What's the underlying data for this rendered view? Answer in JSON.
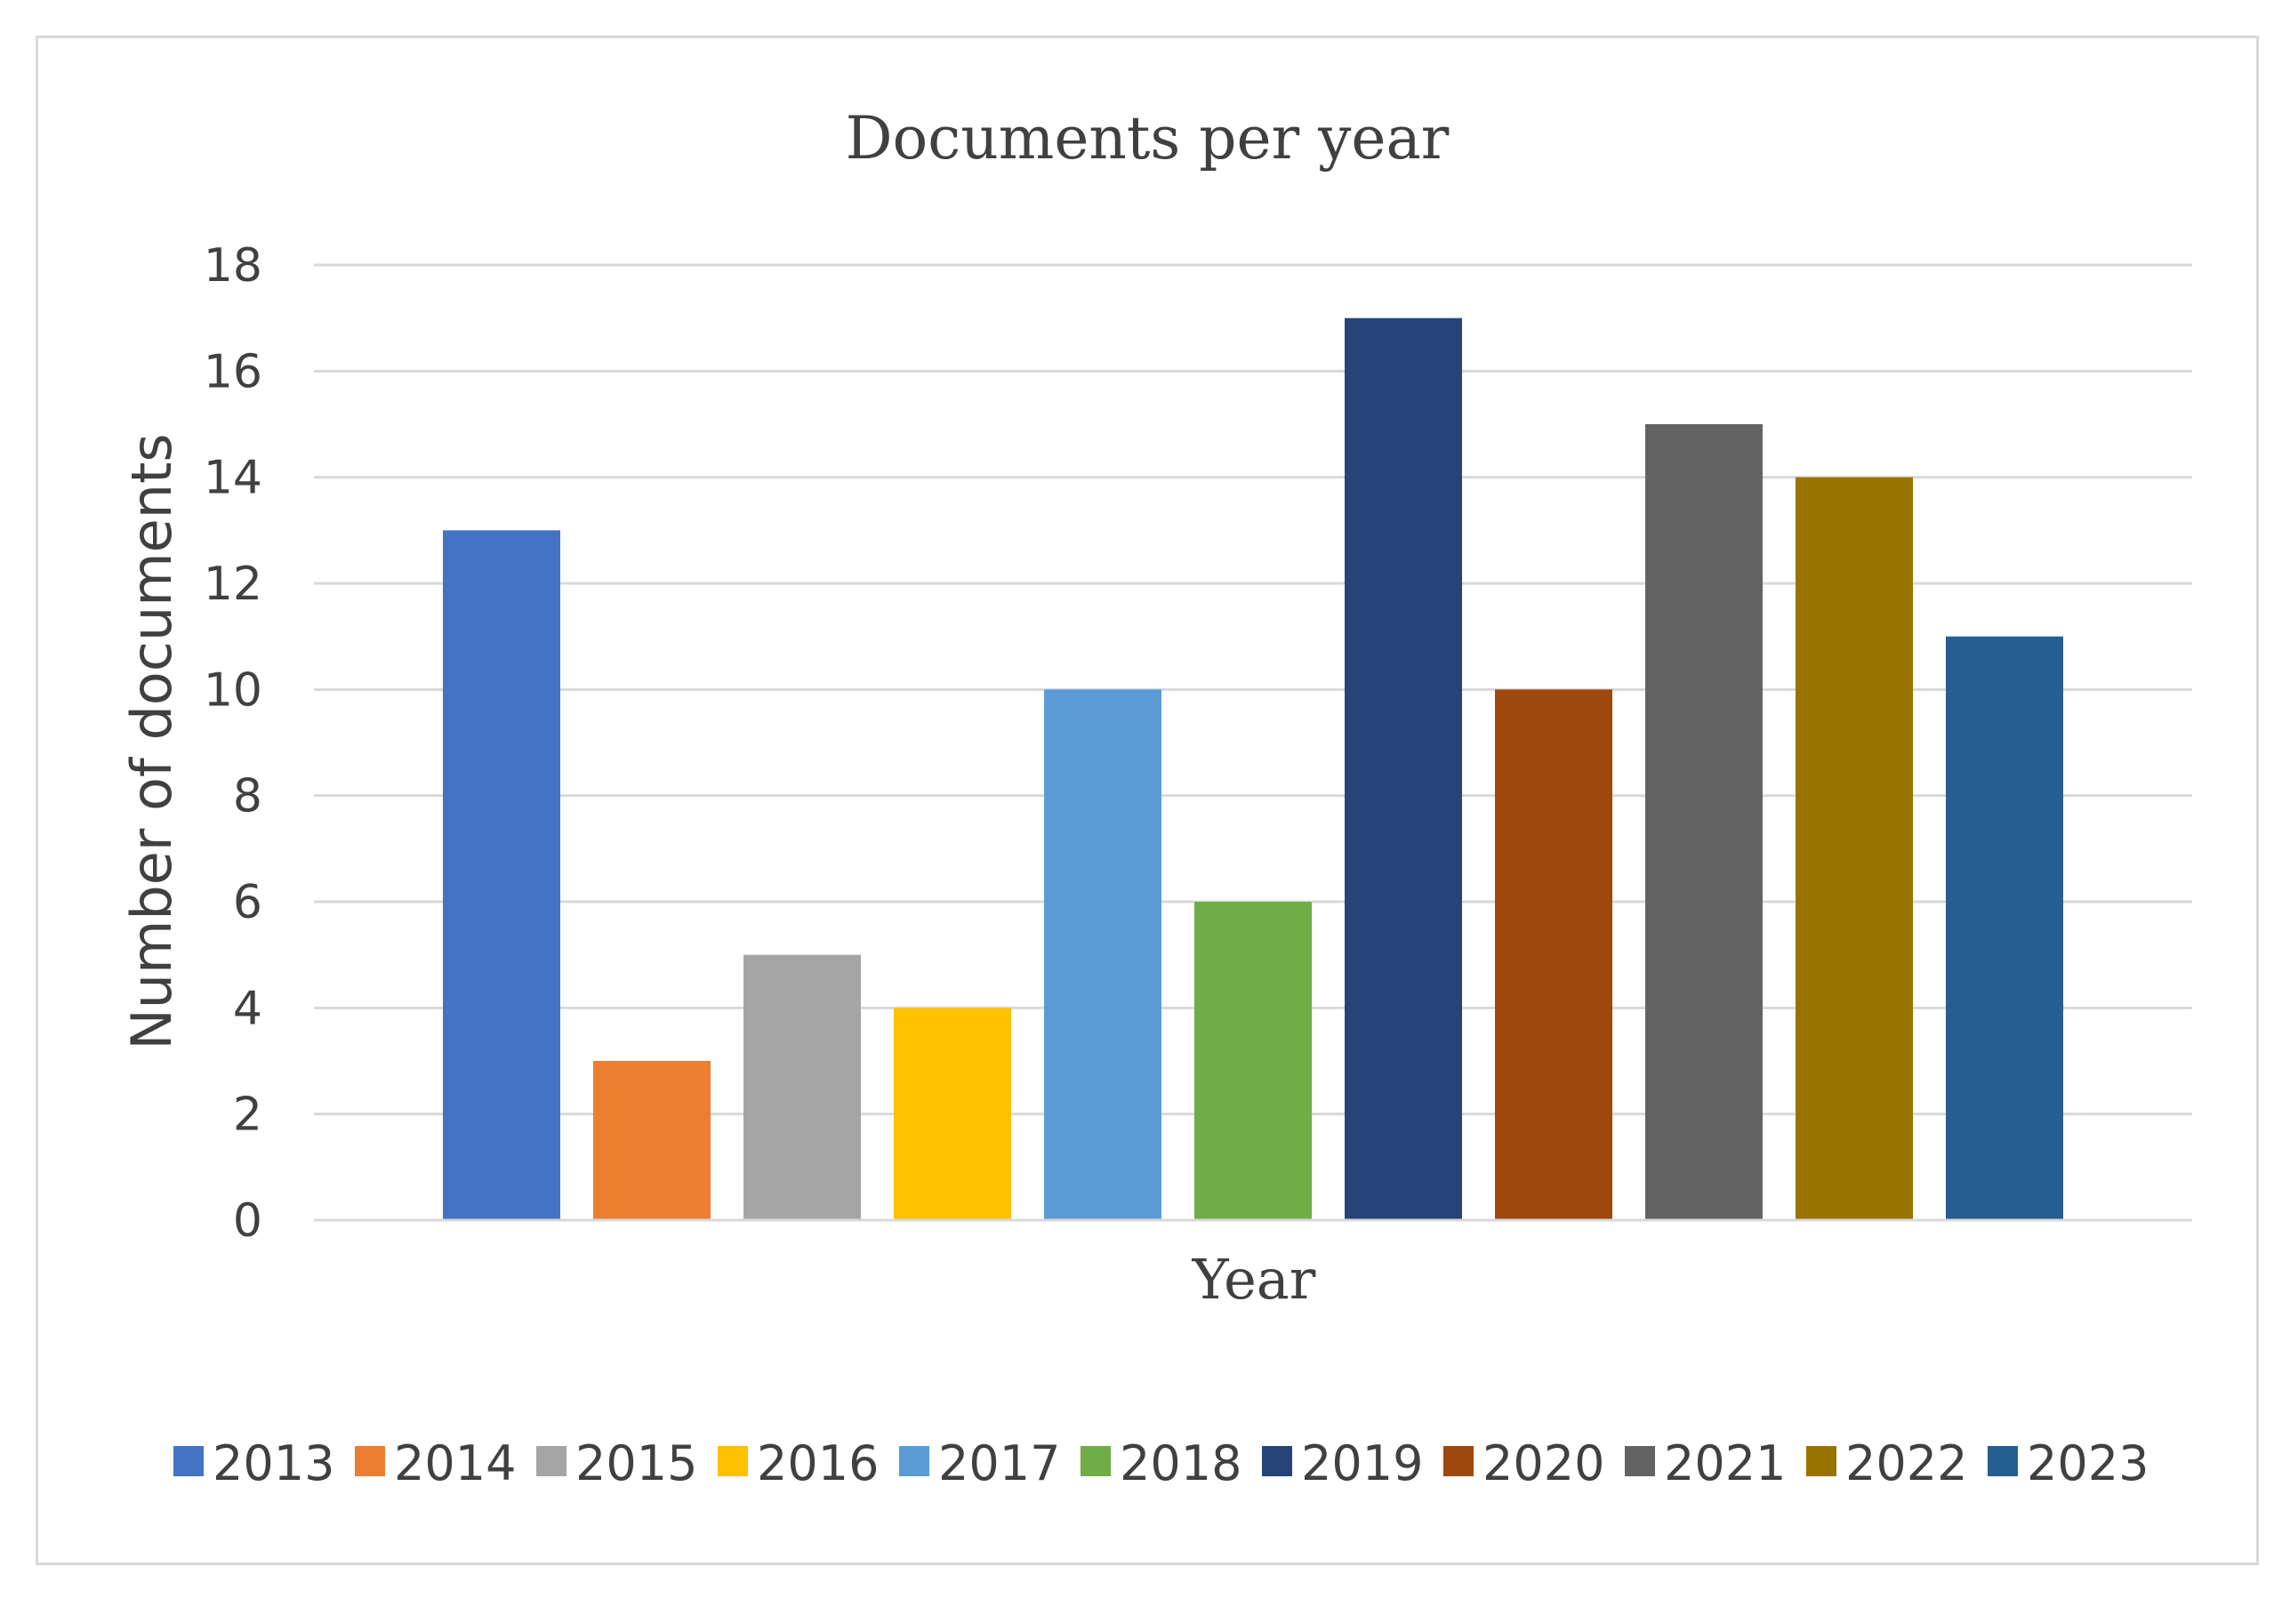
{
  "chart_data": {
    "type": "bar",
    "title": "Documents per year",
    "xlabel": "Year",
    "ylabel": "Number of documents",
    "ylim": [
      0,
      18
    ],
    "yticks": [
      0,
      2,
      4,
      6,
      8,
      10,
      12,
      14,
      16,
      18
    ],
    "grid": true,
    "legend_position": "bottom",
    "series": [
      {
        "name": "2013",
        "value": 13,
        "color": "#4472C4"
      },
      {
        "name": "2014",
        "value": 3,
        "color": "#ED7D31"
      },
      {
        "name": "2015",
        "value": 5,
        "color": "#A5A5A5"
      },
      {
        "name": "2016",
        "value": 4,
        "color": "#FFC000"
      },
      {
        "name": "2017",
        "value": 10,
        "color": "#5B9BD5"
      },
      {
        "name": "2018",
        "value": 6,
        "color": "#70AD47"
      },
      {
        "name": "2019",
        "value": 17,
        "color": "#264478"
      },
      {
        "name": "2020",
        "value": 10,
        "color": "#9E480E"
      },
      {
        "name": "2021",
        "value": 15,
        "color": "#636363"
      },
      {
        "name": "2022",
        "value": 14,
        "color": "#997300"
      },
      {
        "name": "2023",
        "value": 11,
        "color": "#255E91"
      }
    ]
  }
}
